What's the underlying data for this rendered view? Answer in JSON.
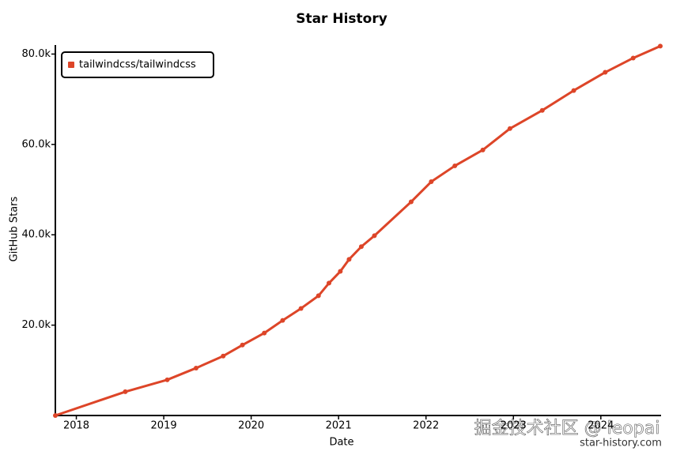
{
  "chart_data": {
    "type": "line",
    "title": "Star History",
    "x_label": "Date",
    "y_label": "GitHub Stars",
    "x": [
      2017.76,
      2018.56,
      2019.04,
      2019.37,
      2019.68,
      2019.9,
      2020.15,
      2020.36,
      2020.57,
      2020.77,
      2020.89,
      2021.02,
      2021.12,
      2021.26,
      2021.41,
      2021.83,
      2022.06,
      2022.33,
      2022.65,
      2022.96,
      2023.33,
      2023.69,
      2024.05,
      2024.37,
      2024.68
    ],
    "series": [
      {
        "name": "tailwindcss/tailwindcss",
        "color": "#dd4528",
        "values": [
          0,
          5260,
          7900,
          10500,
          13160,
          15600,
          18250,
          21050,
          23700,
          26500,
          29300,
          31900,
          34560,
          37370,
          39800,
          47300,
          51750,
          55260,
          58770,
          63500,
          67540,
          71930,
          75960,
          79120,
          81750
        ]
      }
    ],
    "xlim": [
      2017.76,
      2024.68
    ],
    "xticks": [
      2018,
      2019,
      2020,
      2021,
      2022,
      2023,
      2024
    ],
    "ylim": [
      0,
      82000
    ],
    "yticks": [
      {
        "value": 20000,
        "label": "20.0k"
      },
      {
        "value": 40000,
        "label": "40.0k"
      },
      {
        "value": 60000,
        "label": "60.0k"
      },
      {
        "value": 80000,
        "label": "80.0k"
      }
    ],
    "legend": "top-left",
    "grid": false,
    "watermark": "star-history.com",
    "overlay_text": "掘金技术社区 @ leopai"
  }
}
